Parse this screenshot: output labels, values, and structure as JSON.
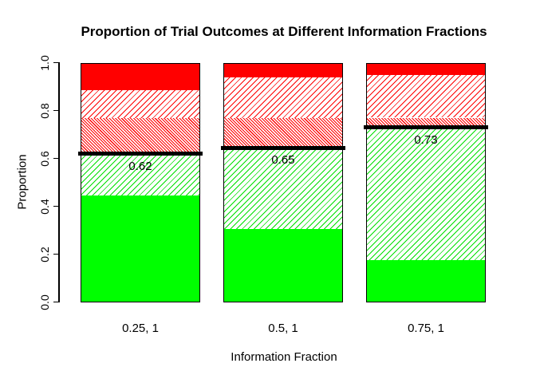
{
  "chart_data": {
    "type": "bar",
    "stacked": true,
    "title": "Proportion of Trial Outcomes at Different Information Fractions",
    "xlabel": "Information Fraction",
    "ylabel": "Proportion",
    "ylim": [
      0,
      1
    ],
    "grid": false,
    "legend": "none",
    "y_ticks": [
      {
        "value": 0.0,
        "label": "0.0"
      },
      {
        "value": 0.2,
        "label": "0.2"
      },
      {
        "value": 0.4,
        "label": "0.4"
      },
      {
        "value": 0.6,
        "label": "0.6"
      },
      {
        "value": 0.8,
        "label": "0.8"
      },
      {
        "value": 1.0,
        "label": "1.0"
      }
    ],
    "categories": [
      "0.25, 1",
      "0.5, 1",
      "0.75, 1"
    ],
    "series": [
      {
        "name": "green-solid",
        "pattern": "solid",
        "color": "#00FF00",
        "values": [
          0.445,
          0.305,
          0.175
        ]
      },
      {
        "name": "green-hatched",
        "pattern": "hatch-diagonal",
        "color": "#00E000",
        "values": [
          0.175,
          0.34,
          0.555
        ]
      },
      {
        "name": "red-dense-hatched",
        "pattern": "hatch-diagonal-dense",
        "color": "#FF0000",
        "values": [
          0.15,
          0.125,
          0.04
        ]
      },
      {
        "name": "red-hatched",
        "pattern": "hatch-diagonal",
        "color": "#FF0000",
        "values": [
          0.115,
          0.17,
          0.178
        ]
      },
      {
        "name": "red-solid",
        "pattern": "solid",
        "color": "#FF0000",
        "values": [
          0.115,
          0.06,
          0.052
        ]
      }
    ],
    "marker_lines": {
      "color": "#000000",
      "values": [
        0.62,
        0.645,
        0.73
      ],
      "labels": [
        "0.62",
        "0.65",
        "0.73"
      ]
    }
  }
}
